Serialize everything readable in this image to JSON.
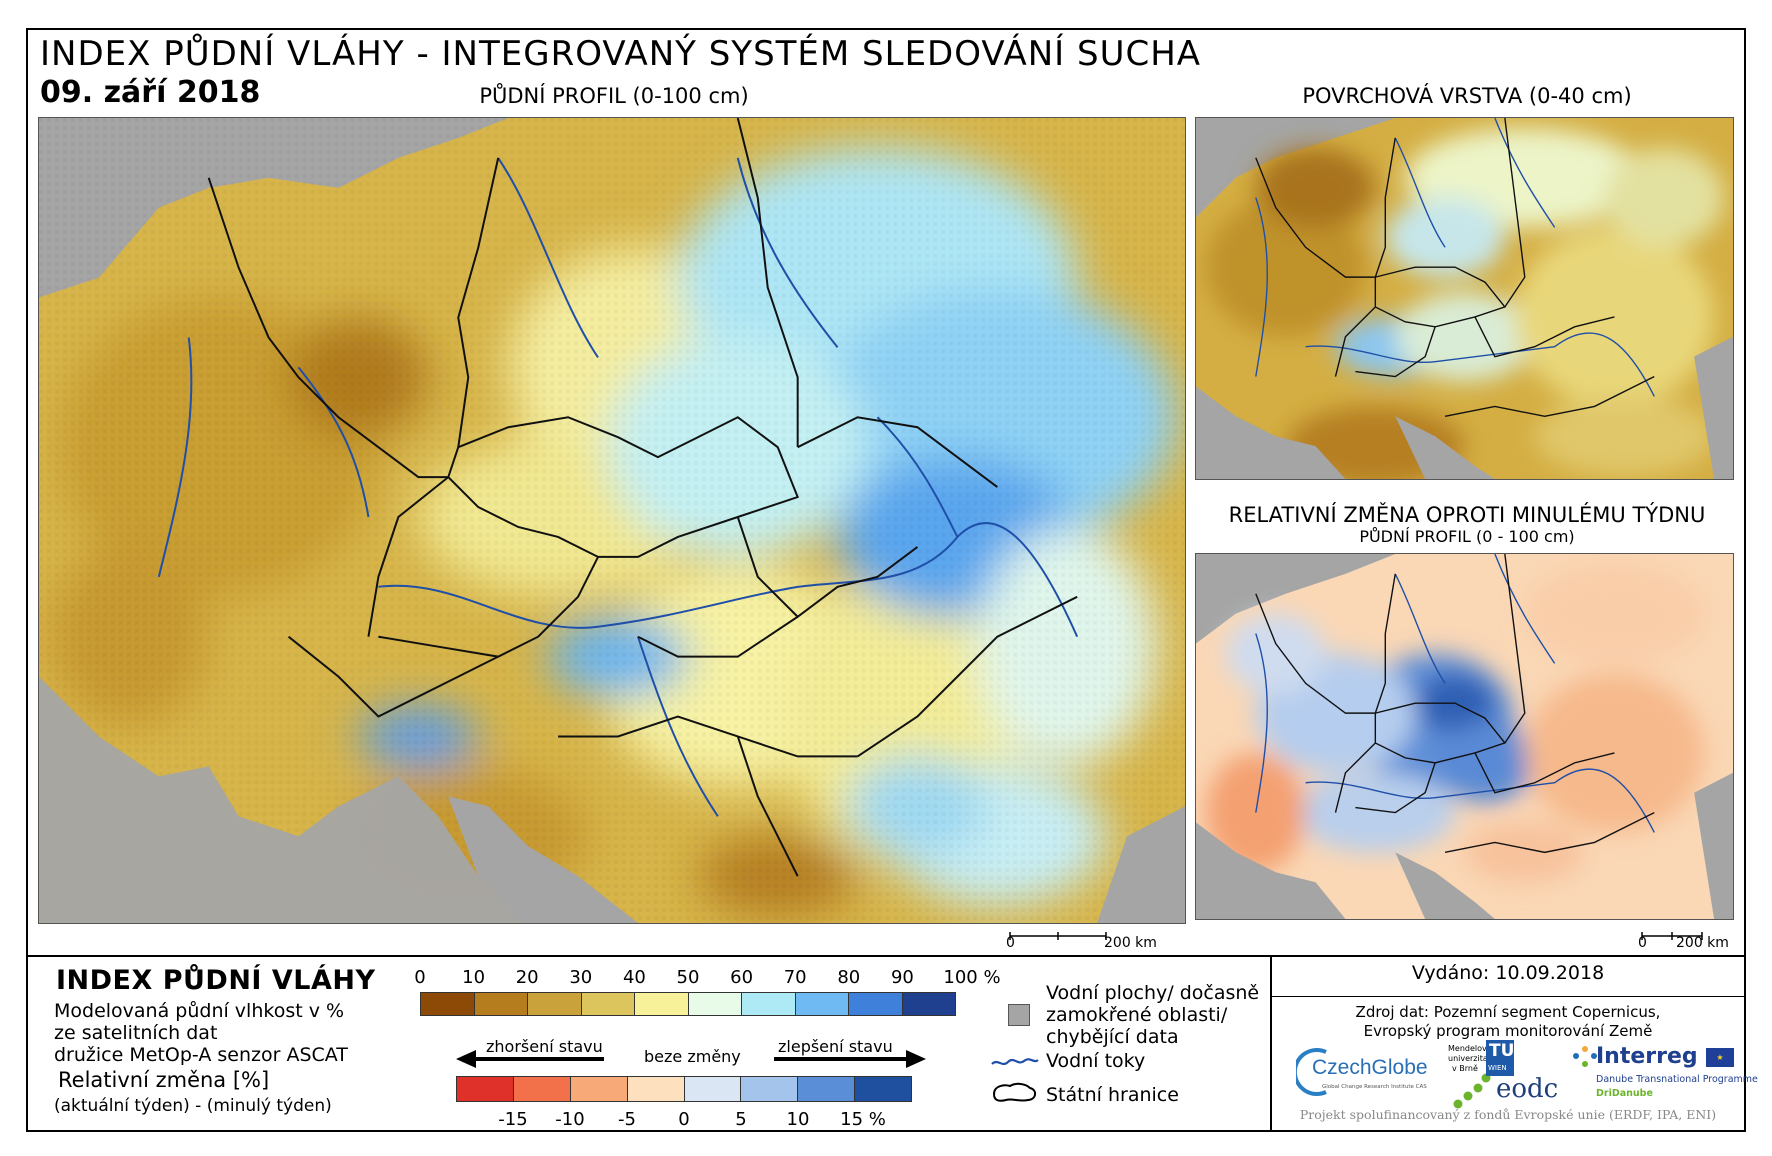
{
  "header": {
    "title": "INDEX PŮDNÍ VLÁHY - INTEGROVANÝ SYSTÉM SLEDOVÁNÍ SUCHA",
    "date": "09. září 2018"
  },
  "maps": {
    "main_label": "PŮDNÍ PROFIL (0-100 cm)",
    "surface_label": "POVRCHOVÁ VRSTVA (0-40 cm)",
    "change_label_1": "RELATIVNÍ ZMĚNA OPROTI MINULÉMU TÝDNU",
    "change_label_2": "PŮDNÍ PROFIL (0 - 100 cm)",
    "scale_zero": "0",
    "scale_end": "200 km"
  },
  "legend": {
    "title": "INDEX PŮDNÍ VLÁHY",
    "line1": "Modelovaná půdní vlhkost v %",
    "line2": "ze satelitních dat",
    "line3": "družice MetOp-A senzor ASCAT",
    "change_title": "Relativní změna [%]",
    "change_sub": "(aktuální týden) - (minulý týden)",
    "index_ticks": [
      "0",
      "10",
      "20",
      "30",
      "40",
      "50",
      "60",
      "70",
      "80",
      "90",
      "100 %"
    ],
    "index_colors": [
      "#8c4a06",
      "#b57d1e",
      "#c9a23b",
      "#dcc55c",
      "#f7f29a",
      "#e8fae8",
      "#aeeaf6",
      "#6fbaf3",
      "#3f80db",
      "#1f3f8f"
    ],
    "worse": "zhoršení stavu",
    "nochange": "beze změny",
    "better": "zlepšení stavu",
    "change_ticks": [
      "-15",
      "-10",
      "-5",
      "0",
      "5",
      "10",
      "15 %"
    ],
    "change_colors": [
      "#e0302a",
      "#f2704a",
      "#f7a978",
      "#fde1bf",
      "#dbe6f4",
      "#a4c4ec",
      "#5a8fd8",
      "#1f4f9f"
    ],
    "water_bodies_1": "Vodní plochy/ dočasně",
    "water_bodies_2": "zamokřené oblasti/",
    "water_bodies_3": "chybějící data",
    "rivers": "Vodní toky",
    "borders": "Státní hranice"
  },
  "info": {
    "issued": "Vydáno: 10.09.2018",
    "source1": "Zdroj dat: Pozemní segment Copernicus,",
    "source2": "Evropský program monitorování Země",
    "funded": "Projekt spolufinancovaný z fondů Evropské unie (ERDF, IPA, ENI)"
  },
  "logos": {
    "czechglobe": "CzechGlobe",
    "czechglobe_sub": "Global Change Research Institute CAS",
    "mendel_1": "Mendelova",
    "mendel_2": "univerzita",
    "mendel_3": "v Brně",
    "tu": "TU",
    "wien": "WIEN",
    "eodc": "eodc",
    "interreg": "Interreg",
    "danube": "Danube Transnational Programme",
    "dridanube": "DriDanube"
  }
}
